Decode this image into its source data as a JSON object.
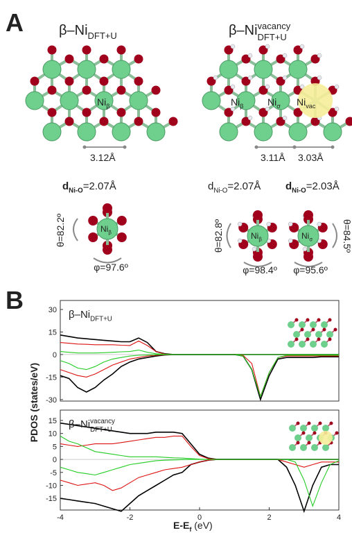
{
  "panel_a": {
    "label": "A",
    "left_title": {
      "base": "β–Ni",
      "sub": "DFT+U"
    },
    "right_title": {
      "base": "β–Ni",
      "sup": "vacancy",
      "sub": "DFT+U"
    },
    "left_atom": {
      "base": "Ni",
      "sub": "β"
    },
    "right_atoms": [
      {
        "base": "Ni",
        "sub": "β"
      },
      {
        "base": "Ni",
        "sub": "σ"
      },
      {
        "base": "Ni",
        "sub": "vac"
      }
    ],
    "left_distance": "3.12Å",
    "right_distances": [
      "3.11Å",
      "3.03Å"
    ],
    "bond_lengths": [
      {
        "base": "d",
        "sub": "Ni-O",
        "rest": "=2.07Å"
      },
      {
        "base": "d",
        "sub": "Ni-O",
        "rest": "=2.07Å"
      },
      {
        "base": "d",
        "sub": "Ni-O",
        "rest": "=2.03Å"
      }
    ],
    "molecules": [
      {
        "atom": {
          "base": "Ni",
          "sub": "β"
        },
        "theta": "θ=82.2º",
        "phi": "φ=97.6º"
      },
      {
        "atom": {
          "base": "Ni",
          "sub": "β"
        },
        "theta": "θ=82.8º",
        "phi": "φ=98.4º"
      },
      {
        "atom": {
          "base": "Ni",
          "sub": "σ"
        },
        "theta": "θ=84.5º",
        "phi": "φ=95.6º"
      }
    ]
  },
  "panel_b": {
    "label": "B",
    "ylabel": "PDOS (states/eV)",
    "xlabel": {
      "base": "E-E",
      "sub": "f",
      "rest": " (eV)"
    }
  },
  "chart_data": [
    {
      "type": "line",
      "subtitle": {
        "base": "β–Ni",
        "sub": "DFT+U"
      },
      "x": [
        -4,
        -3.75,
        -3.5,
        -3.25,
        -3,
        -2.75,
        -2.5,
        -2.25,
        -2,
        -1.75,
        -1.5,
        -1.25,
        -1,
        -0.75,
        -0.5,
        -0.25,
        0,
        0.25,
        0.5,
        0.75,
        1,
        1.25,
        1.5,
        1.75,
        2,
        2.25,
        2.5,
        2.75,
        3,
        3.25,
        3.5,
        3.75,
        4
      ],
      "xlim": [
        -4,
        4
      ],
      "ylim": [
        -31,
        36
      ],
      "yticks": [
        -30,
        -15,
        0,
        15,
        30
      ],
      "series": [
        {
          "color": "#000000",
          "values": [
            13,
            12,
            11,
            10.5,
            10,
            9.5,
            9,
            8.5,
            8.5,
            11,
            8,
            2,
            0.5,
            0,
            0,
            0,
            0,
            0,
            0,
            0,
            0,
            0,
            0,
            0,
            0,
            0,
            0,
            0,
            0,
            0,
            0,
            0,
            0
          ]
        },
        {
          "color": "#000000",
          "values": [
            -14,
            -16,
            -22,
            -25,
            -22,
            -17,
            -13,
            -8,
            -5,
            -3,
            -2,
            -1,
            -0.3,
            0,
            0,
            0,
            0,
            0,
            0,
            0,
            0,
            -1,
            -10,
            -30,
            -14,
            -3,
            -2,
            -2,
            -2,
            -2,
            -1.5,
            -1.5,
            -1.5
          ]
        },
        {
          "color": "#dd1111",
          "values": [
            8,
            7.5,
            7,
            6.8,
            6.5,
            6.5,
            6.5,
            6.2,
            6,
            9,
            6,
            2,
            0.3,
            0,
            0,
            0,
            0,
            0,
            0,
            0,
            0,
            0,
            0,
            0,
            0,
            0,
            0,
            0,
            0,
            0,
            0,
            0,
            0
          ]
        },
        {
          "color": "#dd1111",
          "values": [
            -10,
            -12,
            -14,
            -15,
            -13,
            -10,
            -7,
            -5,
            -3,
            -2,
            -1,
            -0.5,
            -0.2,
            0,
            0,
            0,
            0,
            0,
            0,
            0,
            0,
            -0.5,
            -6,
            -28,
            -12,
            -2,
            -1,
            -1,
            -1,
            -1,
            -1,
            -1,
            -1
          ]
        },
        {
          "color": "#22cc22",
          "values": [
            2,
            1.5,
            1,
            1,
            1,
            1.2,
            1.5,
            1.8,
            2,
            3,
            1.5,
            0.5,
            0.2,
            0,
            0,
            0,
            0,
            0,
            0,
            0,
            0,
            0,
            0,
            0,
            0,
            0,
            0,
            0,
            0,
            0,
            0,
            0,
            0
          ]
        },
        {
          "color": "#22cc22",
          "values": [
            -4,
            -6,
            -9,
            -10,
            -8,
            -5,
            -3,
            -2,
            -1,
            -0.5,
            -0.3,
            -0.1,
            0,
            0,
            0,
            0,
            0,
            0,
            0,
            0,
            0,
            -1,
            -10,
            -28,
            -12,
            -2,
            -0.5,
            -0.5,
            -0.5,
            -0.5,
            -0.5,
            -0.5,
            -0.5
          ]
        }
      ]
    },
    {
      "type": "line",
      "subtitle": {
        "base": "β–Ni",
        "sup": "vacancy",
        "sub": "DFT+U"
      },
      "x": [
        -4,
        -3.75,
        -3.5,
        -3.25,
        -3,
        -2.75,
        -2.5,
        -2.25,
        -2,
        -1.75,
        -1.5,
        -1.25,
        -1,
        -0.75,
        -0.5,
        -0.25,
        0,
        0.25,
        0.5,
        0.75,
        1,
        1.25,
        1.5,
        1.75,
        2,
        2.25,
        2.5,
        2.75,
        3,
        3.25,
        3.5,
        3.75,
        4
      ],
      "xlim": [
        -4,
        4
      ],
      "xticks": [
        -4,
        -2,
        0,
        2,
        4
      ],
      "ylim": [
        -19.5,
        19
      ],
      "yticks": [
        -15,
        -10,
        -5,
        0,
        5,
        10,
        15
      ],
      "series": [
        {
          "color": "#000000",
          "values": [
            14,
            13.5,
            13,
            12.5,
            12,
            11.5,
            11,
            10.5,
            10,
            10,
            10,
            10.5,
            10.5,
            10.5,
            10,
            6,
            2,
            0.5,
            0,
            0,
            0,
            0,
            0,
            0,
            0,
            0,
            0,
            0,
            0,
            0,
            0,
            0,
            0
          ]
        },
        {
          "color": "#000000",
          "values": [
            -15,
            -15.5,
            -16,
            -16.5,
            -17,
            -18,
            -19,
            -20,
            -17,
            -14,
            -12,
            -10,
            -8,
            -6,
            -5,
            -2,
            -1,
            -0.3,
            0,
            0,
            0,
            0,
            0,
            0,
            0,
            0,
            -3,
            -10,
            -20,
            -10,
            -3,
            -2,
            -2
          ]
        },
        {
          "color": "#dd1111",
          "values": [
            6,
            5.5,
            5,
            5.5,
            6,
            6,
            6,
            6.5,
            7,
            7.5,
            8,
            8.5,
            8.5,
            9,
            9,
            5,
            1.5,
            0.3,
            0,
            0,
            0,
            0,
            0,
            0,
            0,
            0,
            0,
            0,
            0,
            0,
            0,
            0,
            0
          ]
        },
        {
          "color": "#dd1111",
          "values": [
            -8,
            -9,
            -10,
            -9.5,
            -9,
            -10,
            -12,
            -11,
            -9,
            -7,
            -6,
            -5,
            -4,
            -3.5,
            -3,
            -2,
            -1,
            -0.3,
            0,
            0,
            0,
            0,
            0,
            0,
            0,
            0,
            -1,
            -2,
            -3,
            -2,
            -1,
            -1,
            -1
          ]
        },
        {
          "color": "#22cc22",
          "values": [
            9,
            7,
            6,
            4.5,
            3,
            2.5,
            2,
            1.5,
            1,
            1,
            1,
            1,
            0.8,
            0.6,
            0.5,
            0.3,
            0.1,
            0,
            0,
            0,
            0,
            0,
            0,
            0,
            0,
            0,
            0,
            0,
            0,
            0,
            0,
            0,
            0
          ]
        },
        {
          "color": "#22cc22",
          "values": [
            -3,
            -4,
            -5,
            -5.5,
            -6,
            -5,
            -4,
            -3,
            -2,
            -1.5,
            -1,
            -0.5,
            -0.3,
            -0.2,
            -0.1,
            0,
            0,
            0,
            0,
            0,
            0,
            0,
            0,
            0,
            0,
            0,
            0,
            -1,
            -8,
            -18,
            -9,
            -2,
            -0.5
          ]
        }
      ]
    }
  ]
}
